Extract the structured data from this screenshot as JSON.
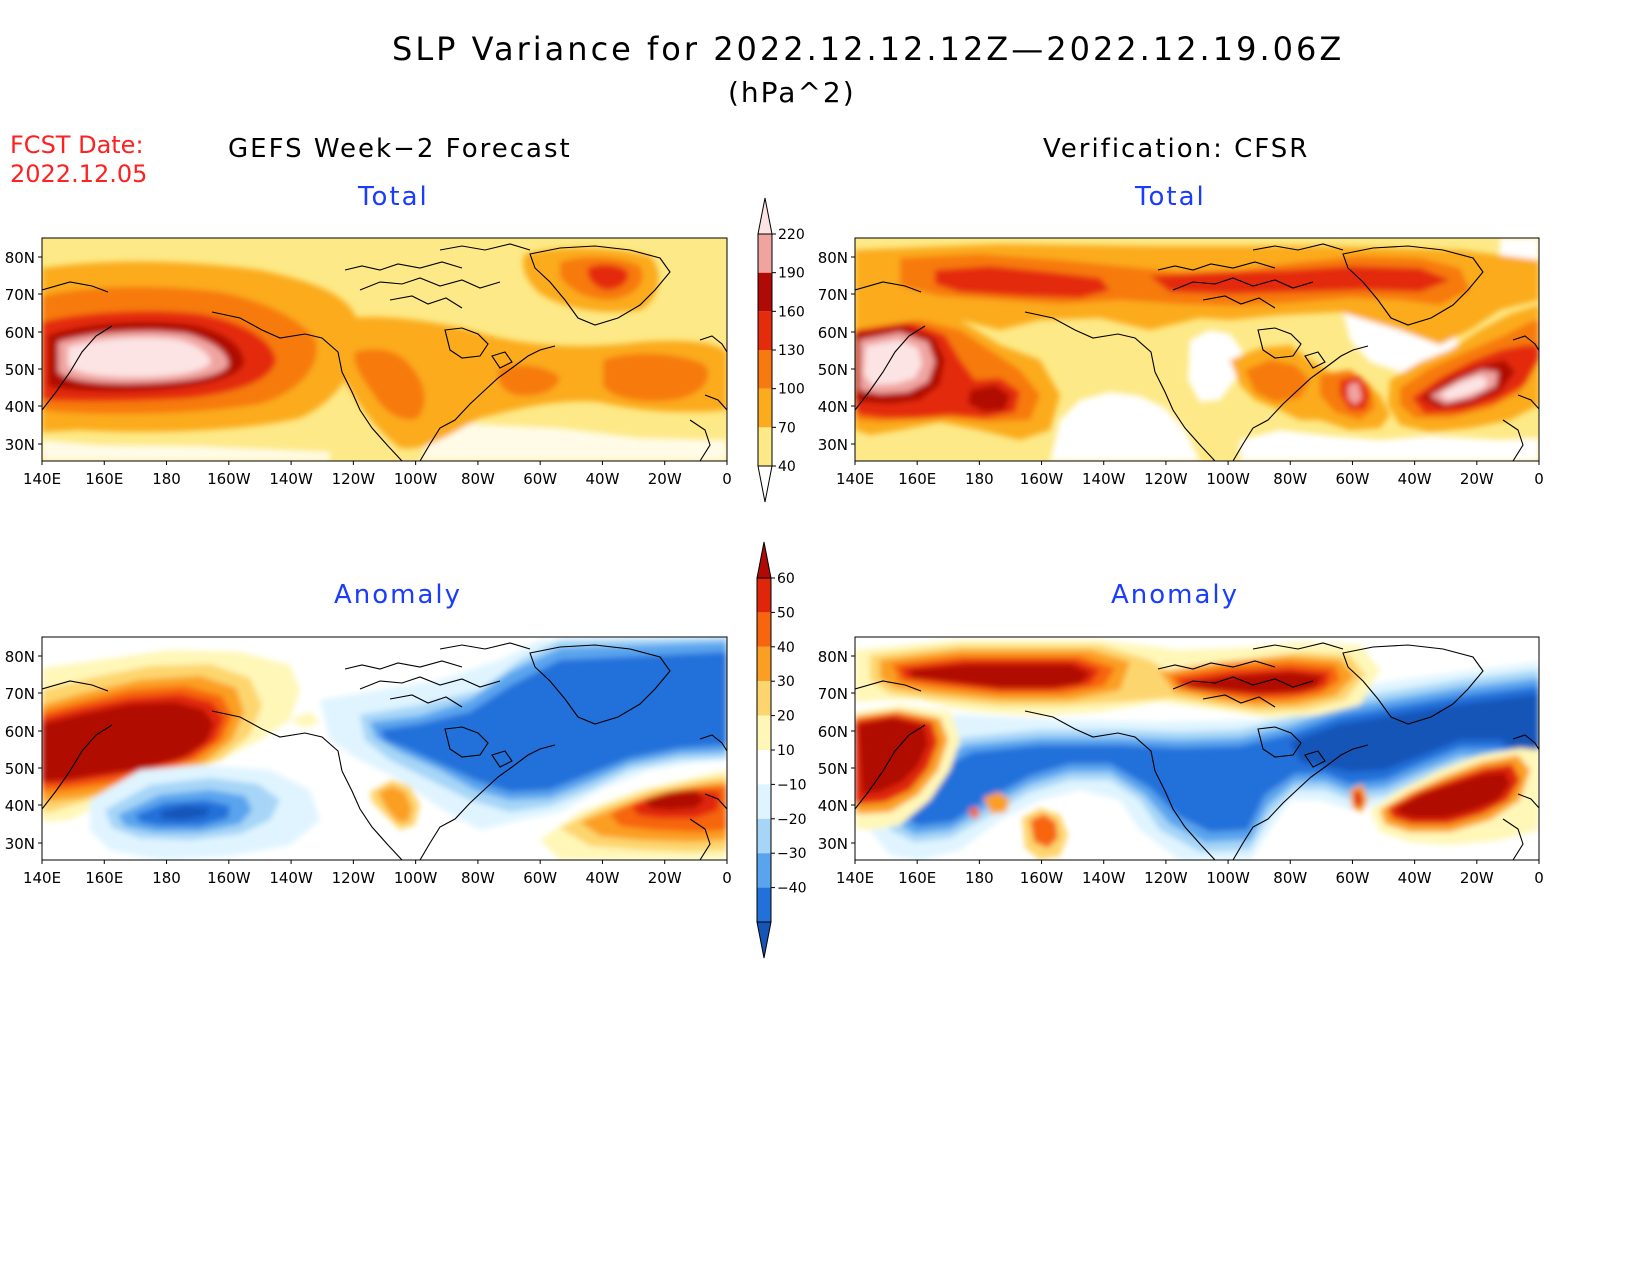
{
  "title": "SLP Variance for 2022.12.12.12Z—2022.12.19.06Z",
  "units": "(hPa^2)",
  "fcst_date": {
    "label": "FCST Date:",
    "value": "2022.12.05"
  },
  "columns": {
    "left": "GEFS Week−2 Forecast",
    "right": "Verification: CFSR"
  },
  "panels": {
    "top_left": "Total",
    "top_right": "Total",
    "bottom_left": "Anomaly",
    "bottom_right": "Anomaly"
  },
  "lat_labels": [
    "80N",
    "70N",
    "60N",
    "50N",
    "40N",
    "30N"
  ],
  "lon_labels": [
    "140E",
    "160E",
    "180",
    "160W",
    "140W",
    "120W",
    "100W",
    "80W",
    "60W",
    "40W",
    "20W",
    "0"
  ],
  "total_scale": {
    "levels": [
      "40",
      "70",
      "100",
      "130",
      "160",
      "190",
      "220"
    ],
    "colors": [
      "#fde987",
      "#fbab1e",
      "#f77a10",
      "#e42c0c",
      "#b00a06",
      "#f0a4a0",
      "#fce4e4"
    ]
  },
  "anomaly_scale": {
    "levels": [
      "60",
      "50",
      "40",
      "30",
      "20",
      "10",
      "−10",
      "−20",
      "−30",
      "−40"
    ],
    "colors": [
      "#b00a06",
      "#e0260a",
      "#f7650e",
      "#fb9f22",
      "#fdd56e",
      "#fff7b8",
      "#ffffff",
      "#dff4ff",
      "#a6d5f7",
      "#5aa4ee",
      "#2271da",
      "#1654b8"
    ]
  },
  "map_colors": {
    "total_background": "#fde987",
    "anomaly_background": "#ffffff",
    "coastline": "#000000"
  }
}
